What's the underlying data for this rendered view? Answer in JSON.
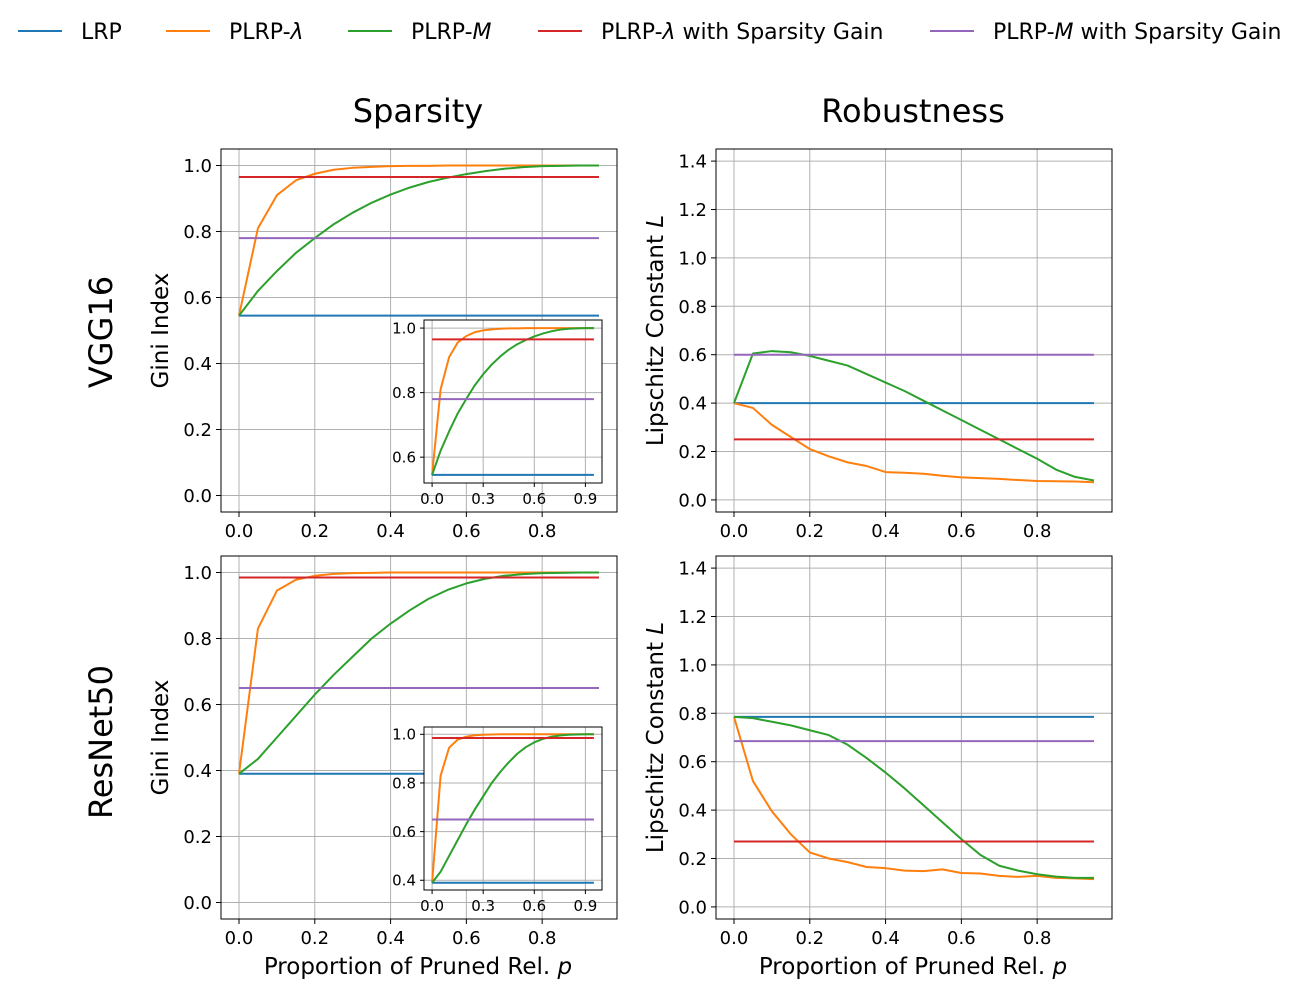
{
  "colors": {
    "lrp": "#1f77b4",
    "plrp_lambda": "#ff7f0e",
    "plrp_m": "#2ca02c",
    "plrp_lambda_sg": "#d62728",
    "plrp_m_sg": "#9467bd",
    "grid": "#b0b0b0"
  },
  "legend": [
    {
      "key": "lrp",
      "label": "LRP"
    },
    {
      "key": "plrp_lambda",
      "label": "PLRP-λ"
    },
    {
      "key": "plrp_m",
      "label": "PLRP-M"
    },
    {
      "key": "plrp_lambda_sg",
      "label": "PLRP-λ with Sparsity Gain"
    },
    {
      "key": "plrp_m_sg",
      "label": "PLRP-M with Sparsity Gain"
    }
  ],
  "column_titles": [
    "Sparsity",
    "Robustness"
  ],
  "row_titles": [
    "VGG16",
    "ResNet50"
  ],
  "x_axis_label": "Proportion of Pruned Rel. p",
  "chart_data": [
    {
      "id": "vgg16-sparsity",
      "type": "line",
      "ylabel": "Gini Index",
      "xlim": [
        -0.0475,
        0.9975
      ],
      "ylim": [
        -0.05,
        1.05
      ],
      "xticks": [
        0.0,
        0.2,
        0.4,
        0.6,
        0.8
      ],
      "xtick_labels": [
        "0.0",
        "0.2",
        "0.4",
        "0.6",
        "0.8"
      ],
      "yticks": [
        0.0,
        0.2,
        0.4,
        0.6,
        0.8,
        1.0
      ],
      "ytick_labels": [
        "0.0",
        "0.2",
        "0.4",
        "0.6",
        "0.8",
        "1.0"
      ],
      "x": [
        0.0,
        0.05,
        0.1,
        0.15,
        0.2,
        0.25,
        0.3,
        0.35,
        0.4,
        0.45,
        0.5,
        0.55,
        0.6,
        0.65,
        0.7,
        0.75,
        0.8,
        0.85,
        0.9,
        0.95
      ],
      "series": [
        {
          "key": "lrp",
          "values": [
            0.545,
            0.545,
            0.545,
            0.545,
            0.545,
            0.545,
            0.545,
            0.545,
            0.545,
            0.545,
            0.545,
            0.545,
            0.545,
            0.545,
            0.545,
            0.545,
            0.545,
            0.545,
            0.545,
            0.545
          ]
        },
        {
          "key": "plrp_lambda",
          "values": [
            0.545,
            0.81,
            0.91,
            0.955,
            0.975,
            0.987,
            0.993,
            0.996,
            0.998,
            0.999,
            0.999,
            1.0,
            1.0,
            1.0,
            1.0,
            1.0,
            1.0,
            1.0,
            1.0,
            1.0
          ]
        },
        {
          "key": "plrp_m",
          "values": [
            0.545,
            0.62,
            0.68,
            0.735,
            0.78,
            0.822,
            0.857,
            0.887,
            0.912,
            0.933,
            0.95,
            0.963,
            0.974,
            0.983,
            0.99,
            0.995,
            0.998,
            0.999,
            1.0,
            1.0
          ]
        },
        {
          "key": "plrp_lambda_sg",
          "values": [
            0.965,
            0.965,
            0.965,
            0.965,
            0.965,
            0.965,
            0.965,
            0.965,
            0.965,
            0.965,
            0.965,
            0.965,
            0.965,
            0.965,
            0.965,
            0.965,
            0.965,
            0.965,
            0.965,
            0.965
          ]
        },
        {
          "key": "plrp_m_sg",
          "values": [
            0.78,
            0.78,
            0.78,
            0.78,
            0.78,
            0.78,
            0.78,
            0.78,
            0.78,
            0.78,
            0.78,
            0.78,
            0.78,
            0.78,
            0.78,
            0.78,
            0.78,
            0.78,
            0.78,
            0.78
          ]
        }
      ],
      "inset": {
        "location": "lower-right",
        "xlim": [
          -0.0475,
          0.9975
        ],
        "ylim": [
          0.52,
          1.025
        ],
        "xticks": [
          0.0,
          0.3,
          0.6,
          0.9
        ],
        "xtick_labels": [
          "0.0",
          "0.3",
          "0.6",
          "0.9"
        ],
        "yticks": [
          0.6,
          0.8,
          1.0
        ],
        "ytick_labels": [
          "0.6",
          "0.8",
          "1.0"
        ]
      }
    },
    {
      "id": "vgg16-robustness",
      "type": "line",
      "ylabel": "Lipschitz Constant L",
      "xlim": [
        -0.0475,
        0.9975
      ],
      "ylim": [
        -0.05,
        1.45
      ],
      "xticks": [
        0.0,
        0.2,
        0.4,
        0.6,
        0.8
      ],
      "xtick_labels": [
        "0.0",
        "0.2",
        "0.4",
        "0.6",
        "0.8"
      ],
      "yticks": [
        0.0,
        0.2,
        0.4,
        0.6,
        0.8,
        1.0,
        1.2,
        1.4
      ],
      "ytick_labels": [
        "0.0",
        "0.2",
        "0.4",
        "0.6",
        "0.8",
        "1.0",
        "1.2",
        "1.4"
      ],
      "x": [
        0.0,
        0.05,
        0.1,
        0.15,
        0.2,
        0.25,
        0.3,
        0.35,
        0.4,
        0.45,
        0.5,
        0.55,
        0.6,
        0.65,
        0.7,
        0.75,
        0.8,
        0.85,
        0.9,
        0.95
      ],
      "series": [
        {
          "key": "lrp",
          "values": [
            0.4,
            0.4,
            0.4,
            0.4,
            0.4,
            0.4,
            0.4,
            0.4,
            0.4,
            0.4,
            0.4,
            0.4,
            0.4,
            0.4,
            0.4,
            0.4,
            0.4,
            0.4,
            0.4,
            0.4
          ]
        },
        {
          "key": "plrp_lambda",
          "values": [
            0.4,
            0.38,
            0.31,
            0.26,
            0.21,
            0.18,
            0.155,
            0.14,
            0.115,
            0.112,
            0.108,
            0.1,
            0.093,
            0.09,
            0.087,
            0.082,
            0.078,
            0.077,
            0.076,
            0.073
          ]
        },
        {
          "key": "plrp_m",
          "values": [
            0.4,
            0.605,
            0.615,
            0.61,
            0.595,
            0.575,
            0.555,
            0.52,
            0.485,
            0.45,
            0.41,
            0.37,
            0.33,
            0.29,
            0.25,
            0.21,
            0.17,
            0.125,
            0.095,
            0.08
          ]
        },
        {
          "key": "plrp_lambda_sg",
          "values": [
            0.25,
            0.25,
            0.25,
            0.25,
            0.25,
            0.25,
            0.25,
            0.25,
            0.25,
            0.25,
            0.25,
            0.25,
            0.25,
            0.25,
            0.25,
            0.25,
            0.25,
            0.25,
            0.25,
            0.25
          ]
        },
        {
          "key": "plrp_m_sg",
          "values": [
            0.6,
            0.6,
            0.6,
            0.6,
            0.6,
            0.6,
            0.6,
            0.6,
            0.6,
            0.6,
            0.6,
            0.6,
            0.6,
            0.6,
            0.6,
            0.6,
            0.6,
            0.6,
            0.6,
            0.6
          ]
        }
      ]
    },
    {
      "id": "resnet50-sparsity",
      "type": "line",
      "ylabel": "Gini Index",
      "xlim": [
        -0.0475,
        0.9975
      ],
      "ylim": [
        -0.05,
        1.05
      ],
      "xticks": [
        0.0,
        0.2,
        0.4,
        0.6,
        0.8
      ],
      "xtick_labels": [
        "0.0",
        "0.2",
        "0.4",
        "0.6",
        "0.8"
      ],
      "yticks": [
        0.0,
        0.2,
        0.4,
        0.6,
        0.8,
        1.0
      ],
      "ytick_labels": [
        "0.0",
        "0.2",
        "0.4",
        "0.6",
        "0.8",
        "1.0"
      ],
      "x": [
        0.0,
        0.05,
        0.1,
        0.15,
        0.2,
        0.25,
        0.3,
        0.35,
        0.4,
        0.45,
        0.5,
        0.55,
        0.6,
        0.65,
        0.7,
        0.75,
        0.8,
        0.85,
        0.9,
        0.95
      ],
      "series": [
        {
          "key": "lrp",
          "values": [
            0.39,
            0.39,
            0.39,
            0.39,
            0.39,
            0.39,
            0.39,
            0.39,
            0.39,
            0.39,
            0.39,
            0.39,
            0.39,
            0.39,
            0.39,
            0.39,
            0.39,
            0.39,
            0.39,
            0.39
          ]
        },
        {
          "key": "plrp_lambda",
          "values": [
            0.39,
            0.83,
            0.945,
            0.978,
            0.99,
            0.996,
            0.998,
            0.999,
            1.0,
            1.0,
            1.0,
            1.0,
            1.0,
            1.0,
            1.0,
            1.0,
            1.0,
            1.0,
            1.0,
            1.0
          ]
        },
        {
          "key": "plrp_m",
          "values": [
            0.39,
            0.435,
            0.5,
            0.565,
            0.63,
            0.69,
            0.745,
            0.8,
            0.845,
            0.885,
            0.92,
            0.947,
            0.967,
            0.981,
            0.99,
            0.995,
            0.998,
            0.999,
            1.0,
            1.0
          ]
        },
        {
          "key": "plrp_lambda_sg",
          "values": [
            0.985,
            0.985,
            0.985,
            0.985,
            0.985,
            0.985,
            0.985,
            0.985,
            0.985,
            0.985,
            0.985,
            0.985,
            0.985,
            0.985,
            0.985,
            0.985,
            0.985,
            0.985,
            0.985,
            0.985
          ]
        },
        {
          "key": "plrp_m_sg",
          "values": [
            0.65,
            0.65,
            0.65,
            0.65,
            0.65,
            0.65,
            0.65,
            0.65,
            0.65,
            0.65,
            0.65,
            0.65,
            0.65,
            0.65,
            0.65,
            0.65,
            0.65,
            0.65,
            0.65,
            0.65
          ]
        }
      ],
      "inset": {
        "location": "lower-right",
        "xlim": [
          -0.0475,
          0.9975
        ],
        "ylim": [
          0.36,
          1.03
        ],
        "xticks": [
          0.0,
          0.3,
          0.6,
          0.9
        ],
        "xtick_labels": [
          "0.0",
          "0.3",
          "0.6",
          "0.9"
        ],
        "yticks": [
          0.4,
          0.6,
          0.8,
          1.0
        ],
        "ytick_labels": [
          "0.4",
          "0.6",
          "0.8",
          "1.0"
        ]
      }
    },
    {
      "id": "resnet50-robustness",
      "type": "line",
      "ylabel": "Lipschitz Constant L",
      "xlim": [
        -0.0475,
        0.9975
      ],
      "ylim": [
        -0.05,
        1.45
      ],
      "xticks": [
        0.0,
        0.2,
        0.4,
        0.6,
        0.8
      ],
      "xtick_labels": [
        "0.0",
        "0.2",
        "0.4",
        "0.6",
        "0.8"
      ],
      "yticks": [
        0.0,
        0.2,
        0.4,
        0.6,
        0.8,
        1.0,
        1.2,
        1.4
      ],
      "ytick_labels": [
        "0.0",
        "0.2",
        "0.4",
        "0.6",
        "0.8",
        "1.0",
        "1.2",
        "1.4"
      ],
      "x": [
        0.0,
        0.05,
        0.1,
        0.15,
        0.2,
        0.25,
        0.3,
        0.35,
        0.4,
        0.45,
        0.5,
        0.55,
        0.6,
        0.65,
        0.7,
        0.75,
        0.8,
        0.85,
        0.9,
        0.95
      ],
      "series": [
        {
          "key": "lrp",
          "values": [
            0.785,
            0.785,
            0.785,
            0.785,
            0.785,
            0.785,
            0.785,
            0.785,
            0.785,
            0.785,
            0.785,
            0.785,
            0.785,
            0.785,
            0.785,
            0.785,
            0.785,
            0.785,
            0.785,
            0.785
          ]
        },
        {
          "key": "plrp_lambda",
          "values": [
            0.785,
            0.52,
            0.395,
            0.3,
            0.225,
            0.2,
            0.185,
            0.165,
            0.16,
            0.15,
            0.148,
            0.155,
            0.14,
            0.138,
            0.128,
            0.124,
            0.128,
            0.12,
            0.118,
            0.115
          ]
        },
        {
          "key": "plrp_m",
          "values": [
            0.785,
            0.78,
            0.765,
            0.75,
            0.73,
            0.71,
            0.67,
            0.615,
            0.555,
            0.49,
            0.42,
            0.35,
            0.28,
            0.215,
            0.17,
            0.15,
            0.135,
            0.125,
            0.12,
            0.12
          ]
        },
        {
          "key": "plrp_lambda_sg",
          "values": [
            0.27,
            0.27,
            0.27,
            0.27,
            0.27,
            0.27,
            0.27,
            0.27,
            0.27,
            0.27,
            0.27,
            0.27,
            0.27,
            0.27,
            0.27,
            0.27,
            0.27,
            0.27,
            0.27,
            0.27
          ]
        },
        {
          "key": "plrp_m_sg",
          "values": [
            0.685,
            0.685,
            0.685,
            0.685,
            0.685,
            0.685,
            0.685,
            0.685,
            0.685,
            0.685,
            0.685,
            0.685,
            0.685,
            0.685,
            0.685,
            0.685,
            0.685,
            0.685,
            0.685,
            0.685
          ]
        }
      ]
    }
  ]
}
